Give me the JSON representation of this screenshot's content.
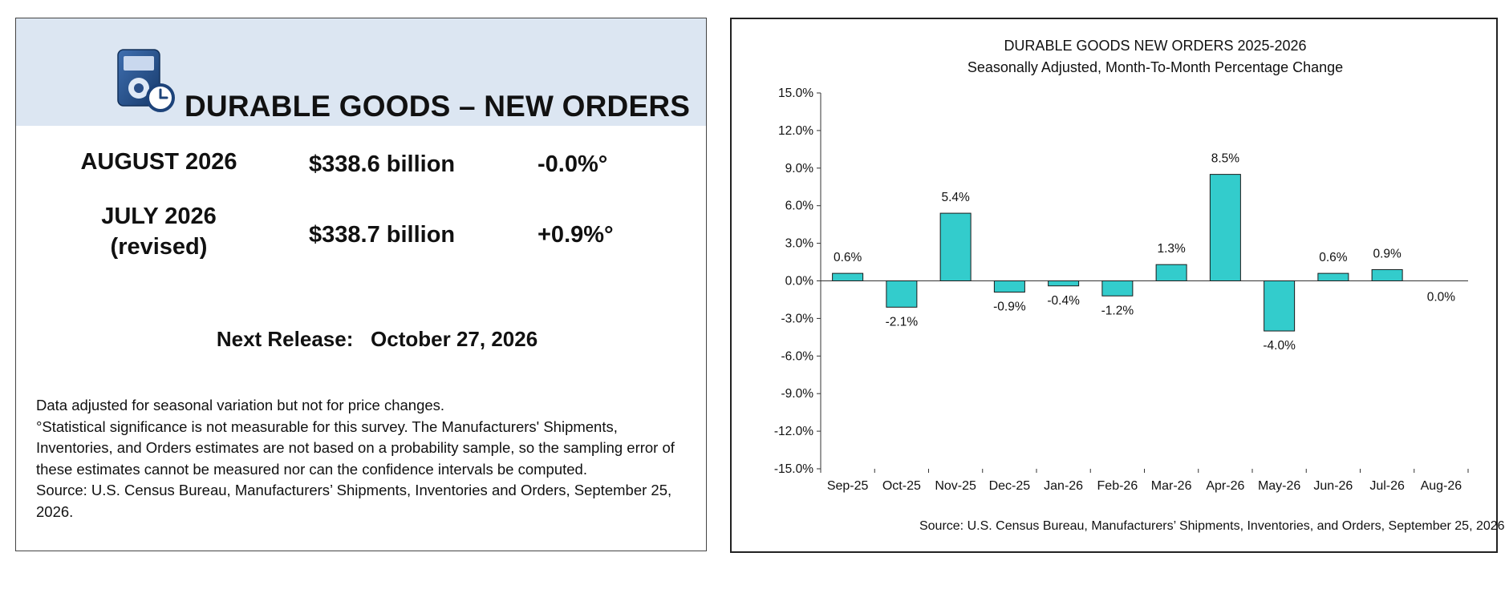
{
  "left": {
    "title": "DURABLE GOODS – NEW ORDERS",
    "rows": [
      {
        "period_line1": "AUGUST 2026",
        "period_line2": "",
        "value": "$338.6 billion",
        "change": "-0.0%°"
      },
      {
        "period_line1": "JULY 2026",
        "period_line2": "(revised)",
        "value": "$338.7 billion",
        "change": "+0.9%°"
      }
    ],
    "next_release_label": "Next Release:",
    "next_release_date": "October 27, 2026",
    "notes": [
      "Data adjusted for seasonal variation but not for price changes.",
      "°Statistical significance is not measurable for this survey.  The Manufacturers' Shipments, Inventories, and Orders estimates are not based on a probability sample, so the sampling error of these estimates cannot be measured nor can the confidence intervals be computed.",
      "Source: U.S. Census Bureau, Manufacturers’ Shipments, Inventories and Orders, September 25, 2026."
    ],
    "icon": "tablet-clock-icon"
  },
  "chart_data": {
    "type": "bar",
    "title": "DURABLE GOODS NEW ORDERS 2025-2026",
    "subtitle": "Seasonally Adjusted, Month-To-Month Percentage Change",
    "source": "Source: U.S. Census Bureau, Manufacturers’ Shipments, Inventories, and Orders, September 25, 2026.",
    "categories": [
      "Sep-25",
      "Oct-25",
      "Nov-25",
      "Dec-25",
      "Jan-26",
      "Feb-26",
      "Mar-26",
      "Apr-26",
      "May-26",
      "Jun-26",
      "Jul-26",
      "Aug-26"
    ],
    "values": [
      0.6,
      -2.1,
      5.4,
      -0.9,
      -0.4,
      -1.2,
      1.3,
      8.5,
      -4.0,
      0.6,
      0.9,
      0.0
    ],
    "data_labels": [
      "0.6%",
      "-2.1%",
      "5.4%",
      "-0.9%",
      "-0.4%",
      "-1.2%",
      "1.3%",
      "8.5%",
      "-4.0%",
      "0.6%",
      "0.9%",
      "0.0%"
    ],
    "yticks": [
      15,
      12,
      9,
      6,
      3,
      0,
      -3,
      -6,
      -9,
      -12,
      -15
    ],
    "ytick_labels": [
      "15.0%",
      "12.0%",
      "9.0%",
      "6.0%",
      "3.0%",
      "0.0%",
      "-3.0%",
      "-6.0%",
      "-9.0%",
      "-12.0%",
      "-15.0%"
    ],
    "ylim": [
      -15,
      15
    ],
    "bar_color": "#33cccc",
    "bar_border": "#1a1a1a",
    "grid": false,
    "legend": "none"
  }
}
